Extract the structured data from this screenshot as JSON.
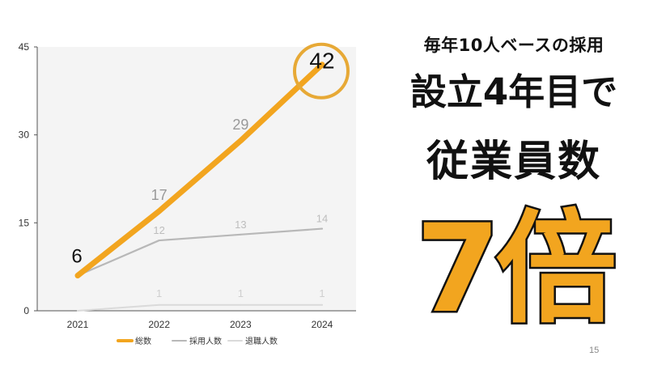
{
  "headline": {
    "sub": "毎年10人ベースの採用",
    "main1": "設立4年目で",
    "main2": "従業員数",
    "big": "7倍"
  },
  "page_number": "15",
  "chart_data": {
    "type": "line",
    "x": [
      "2021",
      "2022",
      "2023",
      "2024"
    ],
    "ylim": [
      0,
      45
    ],
    "yticks": [
      "0",
      "15",
      "30",
      "45"
    ],
    "grid": false,
    "legend_placement": "bottom",
    "series": [
      {
        "name": "総数",
        "values": [
          6,
          17,
          29,
          42
        ],
        "labels": [
          "6",
          "17",
          "29",
          "42"
        ],
        "color": "#F2A51F"
      },
      {
        "name": "採用人数",
        "values": [
          6,
          12,
          13,
          14
        ],
        "labels": [
          "",
          "12",
          "13",
          "14"
        ],
        "color": "#B8B8B8"
      },
      {
        "name": "退職人数",
        "values": [
          0,
          1,
          1,
          1
        ],
        "labels": [
          "",
          "1",
          "1",
          "1"
        ],
        "color": "#DADADA"
      }
    ],
    "highlight_circle_series": 0,
    "highlight_circle_index": 3,
    "highlight_color": "#E7A936"
  }
}
